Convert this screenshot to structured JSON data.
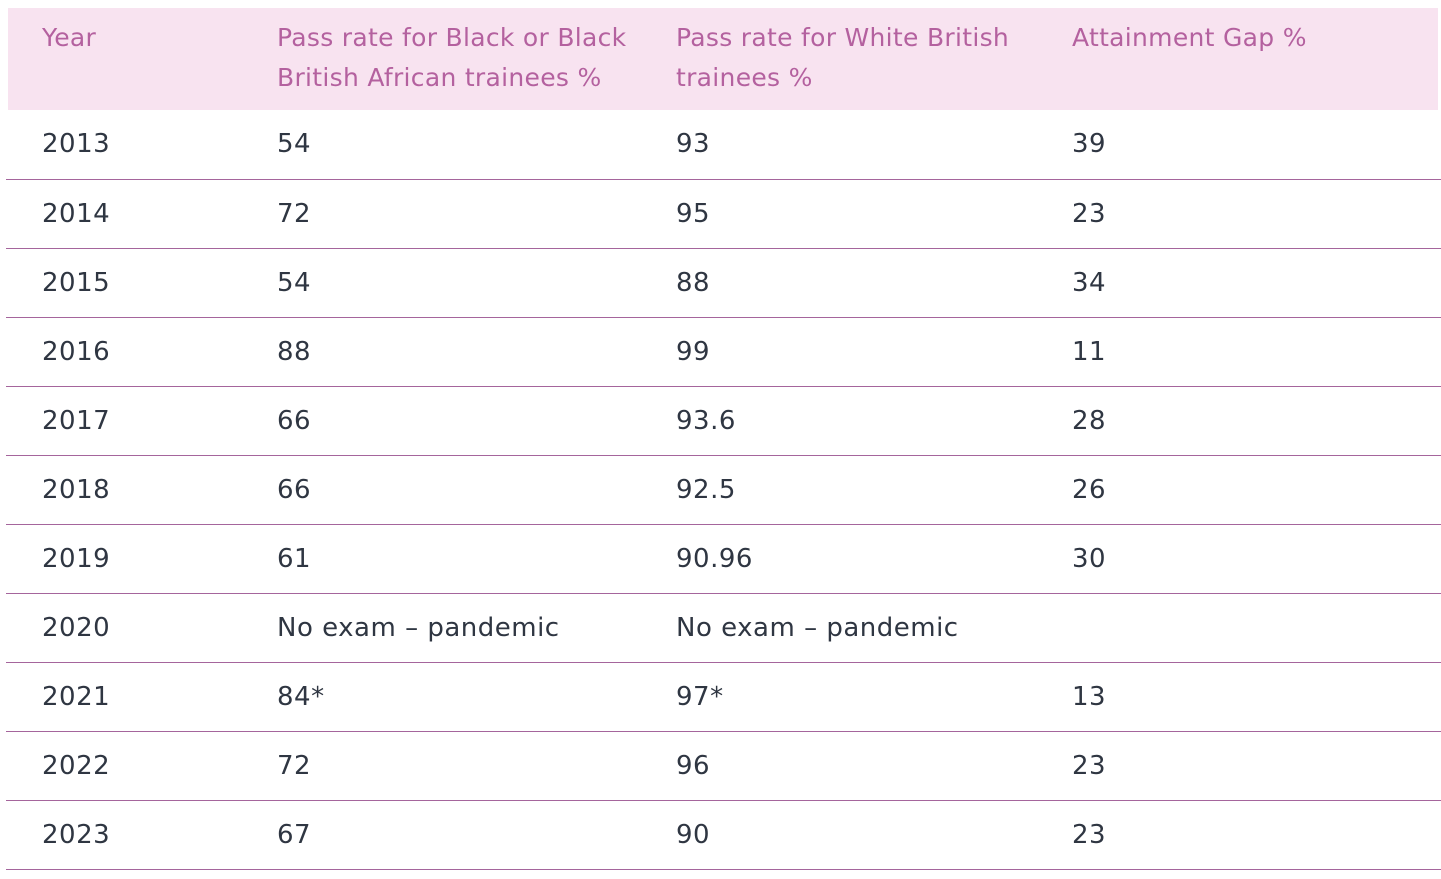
{
  "colors": {
    "header_bg": "#f8e3f0",
    "header_text": "#b4619f",
    "row_line": "#a5659c",
    "body_text": "#2f3642",
    "page_bg": "#ffffff"
  },
  "chart_data": {
    "type": "table",
    "title": "",
    "columns": [
      "Year",
      "Pass rate for Black or Black British African trainees %",
      "Pass rate for White British trainees %",
      "Attainment Gap %"
    ],
    "rows": [
      [
        "2013",
        "54",
        "93",
        "39"
      ],
      [
        "2014",
        "72",
        "95",
        "23"
      ],
      [
        "2015",
        "54",
        "88",
        "34"
      ],
      [
        "2016",
        "88",
        "99",
        "11"
      ],
      [
        "2017",
        "66",
        "93.6",
        "28"
      ],
      [
        "2018",
        "66",
        "92.5",
        "26"
      ],
      [
        "2019",
        "61",
        "90.96",
        "30"
      ],
      [
        "2020",
        "No exam – pandemic",
        "No exam – pandemic",
        ""
      ],
      [
        "2021",
        "84*",
        "97*",
        "13"
      ],
      [
        "2022",
        "72",
        "96",
        "23"
      ],
      [
        "2023",
        "67",
        "90",
        "23"
      ]
    ]
  }
}
